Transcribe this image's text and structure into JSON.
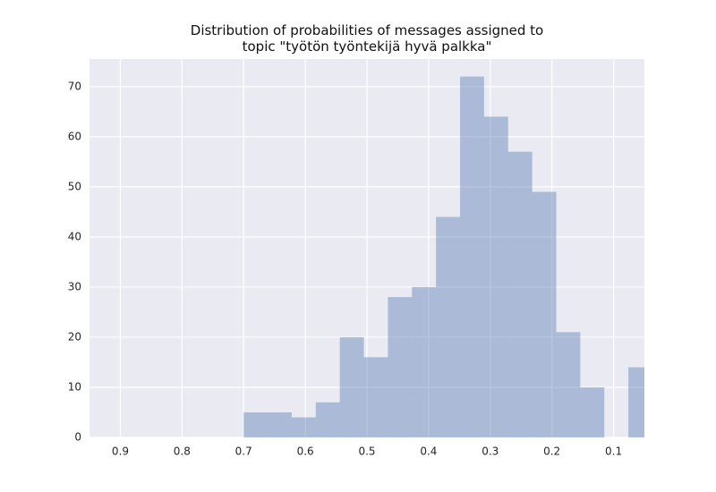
{
  "chart_data": {
    "type": "histogram",
    "title": "Distribution of probabilities of messages assigned to\ntopic \"työtön työntekijä hyvä palkka\"",
    "bins": [
      0.037,
      0.076,
      0.115,
      0.154,
      0.193,
      0.232,
      0.271,
      0.31,
      0.349,
      0.388,
      0.427,
      0.466,
      0.505,
      0.544,
      0.583,
      0.622,
      0.661,
      0.7
    ],
    "values": [
      14,
      0,
      10,
      21,
      49,
      57,
      64,
      72,
      44,
      30,
      28,
      16,
      20,
      7,
      4,
      5,
      5
    ],
    "color": "#4c72b0",
    "opacity": 0.4,
    "background": "#eaeaf2",
    "xlim": [
      0.95,
      0.05
    ],
    "xticks": [
      0.9,
      0.8,
      0.7,
      0.6,
      0.5,
      0.4,
      0.3,
      0.2,
      0.1
    ],
    "ylim": [
      0,
      75.5
    ],
    "yticks": [
      0,
      10,
      20,
      30,
      40,
      50,
      60,
      70
    ],
    "grid": true
  }
}
